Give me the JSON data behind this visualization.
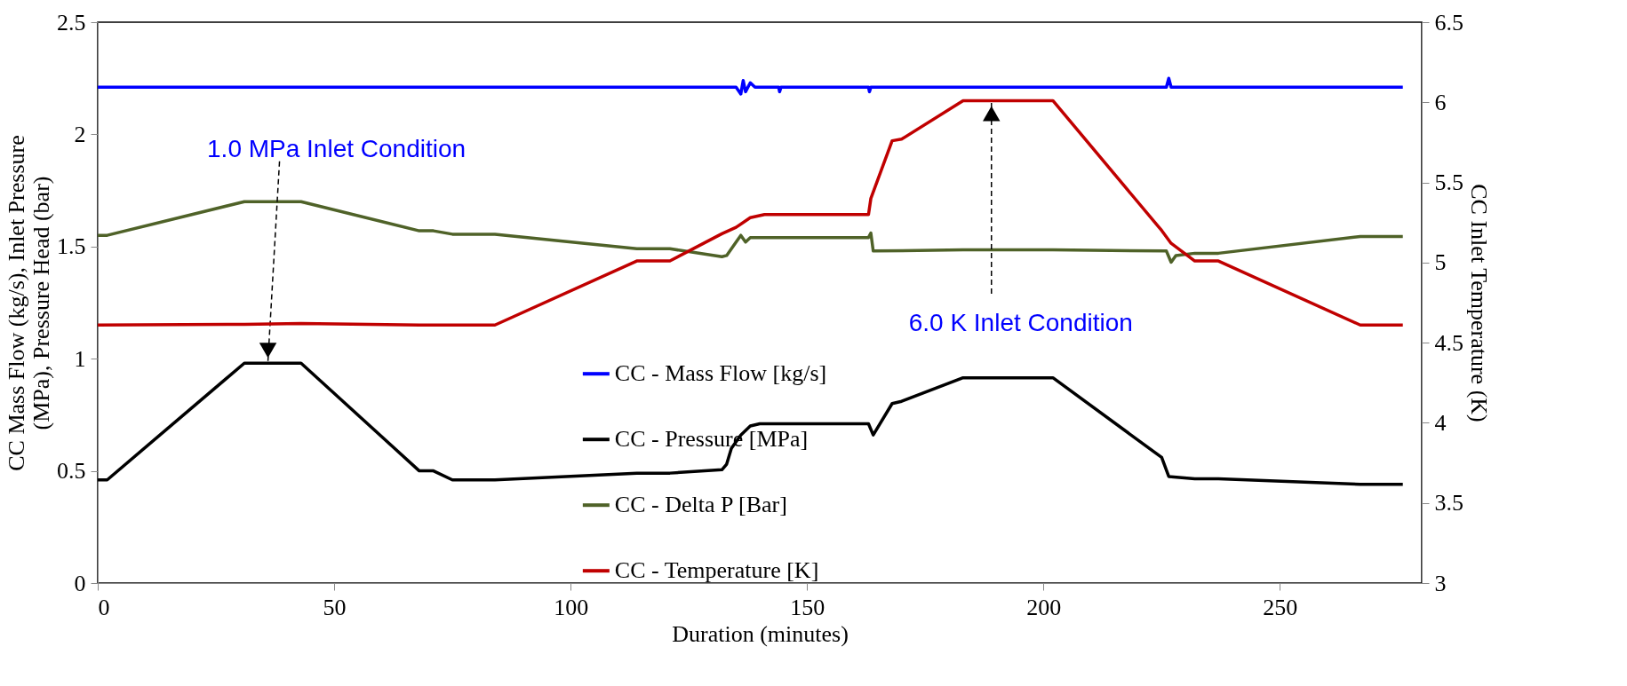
{
  "chart_data": {
    "type": "line",
    "xlabel": "Duration (minutes)",
    "ylabel": "CC Mass Flow (kg/s), Inlet Pressure (MPa), Pressure Head (bar)",
    "y2label": "CC Inlet Temperature (K)",
    "xlim": [
      0,
      280
    ],
    "xticks": [
      0,
      50,
      100,
      150,
      200,
      250
    ],
    "ylim": [
      0,
      2.5
    ],
    "yticks": [
      0,
      0.5,
      1,
      1.5,
      2,
      2.5
    ],
    "y2lim": [
      3,
      6.5
    ],
    "y2ticks": [
      3,
      3.5,
      4,
      4.5,
      5,
      5.5,
      6,
      6.5
    ],
    "grid": false,
    "legend": "bottom",
    "marker": "none",
    "line_style": "solid",
    "series": [
      {
        "name": "CC - Mass Flow [kg/s]",
        "color": "#0000ff",
        "x": [
          0,
          135,
          136,
          136.5,
          137,
          138,
          139,
          144,
          144.2,
          144.5,
          163,
          163.2,
          163.5,
          226,
          226.5,
          227,
          276
        ],
        "values": [
          2.21,
          2.21,
          2.18,
          2.24,
          2.19,
          2.23,
          2.21,
          2.21,
          2.19,
          2.21,
          2.21,
          2.19,
          2.21,
          2.21,
          2.25,
          2.21,
          2.21
        ]
      },
      {
        "name": "CC - Pressure [MPa]",
        "color": "#000000",
        "x": [
          0,
          2,
          31,
          43,
          68,
          71,
          75,
          84,
          114,
          121,
          132,
          133,
          134,
          136,
          138,
          140,
          163,
          164,
          168,
          170,
          183,
          202,
          225,
          226.5,
          232,
          237,
          267,
          276
        ],
        "values": [
          0.46,
          0.46,
          0.98,
          0.98,
          0.5,
          0.5,
          0.46,
          0.46,
          0.49,
          0.49,
          0.505,
          0.53,
          0.6,
          0.66,
          0.7,
          0.71,
          0.71,
          0.66,
          0.8,
          0.81,
          0.915,
          0.915,
          0.56,
          0.475,
          0.465,
          0.465,
          0.44,
          0.44
        ]
      },
      {
        "name": "CC - Delta P [Bar]",
        "color": "#4f6228",
        "x": [
          0,
          2,
          31,
          43,
          68,
          71,
          75,
          84,
          114,
          121,
          132,
          133,
          135,
          136,
          137,
          138,
          163,
          163.5,
          164,
          183,
          202,
          226,
          227,
          228,
          232,
          237,
          267,
          276
        ],
        "values": [
          1.55,
          1.55,
          1.7,
          1.7,
          1.57,
          1.57,
          1.555,
          1.555,
          1.49,
          1.49,
          1.455,
          1.46,
          1.52,
          1.55,
          1.52,
          1.54,
          1.54,
          1.56,
          1.48,
          1.485,
          1.485,
          1.48,
          1.43,
          1.46,
          1.47,
          1.47,
          1.545,
          1.545
        ]
      },
      {
        "name": "CC - Temperature [K]",
        "color": "#c00000",
        "axis": "y2",
        "x": [
          0,
          31,
          43,
          68,
          84,
          114,
          121,
          132,
          135,
          138,
          141,
          163,
          163.5,
          168,
          170,
          183,
          202,
          225,
          227,
          232,
          237,
          267,
          276
        ],
        "values": [
          4.61,
          4.615,
          4.62,
          4.61,
          4.61,
          5.01,
          5.01,
          5.18,
          5.22,
          5.28,
          5.3,
          5.3,
          5.4,
          5.76,
          5.77,
          6.01,
          6.01,
          5.2,
          5.12,
          5.01,
          5.01,
          4.61,
          4.61
        ]
      }
    ],
    "annotations": [
      {
        "text": "1.0 MPa Inlet Condition",
        "x": 36,
        "y": 0.99
      },
      {
        "text": "6.0 K Inlet Condition",
        "x": 189,
        "y": 2.14
      }
    ]
  }
}
